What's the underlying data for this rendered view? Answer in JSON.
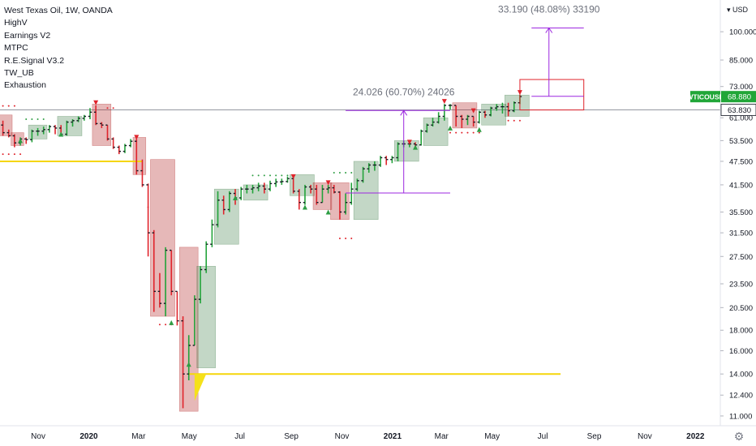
{
  "legend": {
    "title": "West Texas Oil, 1W, OANDA",
    "indicators": [
      "HighV",
      "Earnings V2",
      "MTPC",
      "R.E.Signal V3.2",
      "TW_UB",
      "Exhaustion"
    ]
  },
  "chart_data": {
    "type": "candlestick",
    "symbol": "WTICOUSD",
    "currency": "USD",
    "last_price": "68.880",
    "horizontal_line_value": "63.830",
    "y_axis": {
      "scale": "log",
      "ticks": [
        "100.000",
        "85.000",
        "73.000",
        "63.830",
        "61.000",
        "53.500",
        "47.500",
        "41.500",
        "35.500",
        "31.500",
        "27.500",
        "23.500",
        "20.500",
        "18.000",
        "16.000",
        "14.000",
        "12.400",
        "11.000"
      ],
      "tick_values": [
        100,
        85,
        73,
        63.83,
        61,
        53.5,
        47.5,
        41.5,
        35.5,
        31.5,
        27.5,
        23.5,
        20.5,
        18,
        16,
        14,
        12.4,
        11
      ],
      "ylim": [
        10.4,
        120
      ]
    },
    "x_axis": {
      "ticks": [
        "Nov",
        "2020",
        "Mar",
        "May",
        "Jul",
        "Sep",
        "Nov",
        "2021",
        "Mar",
        "May",
        "Jul",
        "Sep",
        "Nov",
        "2022"
      ],
      "bold": [
        "2020",
        "2021",
        "2022"
      ],
      "xlim": [
        "2019-09-16",
        "2022-01-31"
      ]
    },
    "candles": [
      {
        "date": "2019-09-16",
        "o": 58.5,
        "h": 60,
        "l": 55,
        "c": 56
      },
      {
        "date": "2019-09-23",
        "o": 56,
        "h": 57,
        "l": 54.5,
        "c": 55
      },
      {
        "date": "2019-09-30",
        "o": 55,
        "h": 55.5,
        "l": 51.5,
        "c": 52.8
      },
      {
        "date": "2019-10-07",
        "o": 52.8,
        "h": 54.5,
        "l": 52,
        "c": 54
      },
      {
        "date": "2019-10-14",
        "o": 54,
        "h": 54.5,
        "l": 52.5,
        "c": 53.8
      },
      {
        "date": "2019-10-21",
        "o": 53.8,
        "h": 57,
        "l": 53,
        "c": 56.5
      },
      {
        "date": "2019-10-28",
        "o": 56.5,
        "h": 57.5,
        "l": 55,
        "c": 56.5
      },
      {
        "date": "2019-11-04",
        "o": 56.5,
        "h": 58,
        "l": 55.5,
        "c": 57
      },
      {
        "date": "2019-11-11",
        "o": 57,
        "h": 58.5,
        "l": 56,
        "c": 58
      },
      {
        "date": "2019-11-18",
        "o": 58,
        "h": 58.5,
        "l": 55.5,
        "c": 57.5
      },
      {
        "date": "2019-11-25",
        "o": 57.5,
        "h": 58.5,
        "l": 55,
        "c": 55.5
      },
      {
        "date": "2019-12-02",
        "o": 55.5,
        "h": 60,
        "l": 55,
        "c": 59.5
      },
      {
        "date": "2019-12-09",
        "o": 59.5,
        "h": 60.5,
        "l": 58,
        "c": 60
      },
      {
        "date": "2019-12-16",
        "o": 60,
        "h": 61.5,
        "l": 59.5,
        "c": 60.8
      },
      {
        "date": "2019-12-23",
        "o": 60.8,
        "h": 62,
        "l": 60,
        "c": 61.5
      },
      {
        "date": "2019-12-30",
        "o": 61.5,
        "h": 64.5,
        "l": 60.5,
        "c": 63
      },
      {
        "date": "2020-01-06",
        "o": 63,
        "h": 65.5,
        "l": 58.5,
        "c": 59
      },
      {
        "date": "2020-01-13",
        "o": 59,
        "h": 59.5,
        "l": 57.5,
        "c": 58.5
      },
      {
        "date": "2020-01-20",
        "o": 58.5,
        "h": 58.5,
        "l": 53.5,
        "c": 54
      },
      {
        "date": "2020-01-27",
        "o": 54,
        "h": 54.5,
        "l": 51,
        "c": 51.5
      },
      {
        "date": "2020-02-03",
        "o": 51.5,
        "h": 52,
        "l": 49.5,
        "c": 50.3
      },
      {
        "date": "2020-02-10",
        "o": 50.3,
        "h": 52.5,
        "l": 49.8,
        "c": 52
      },
      {
        "date": "2020-02-17",
        "o": 52,
        "h": 54,
        "l": 51.5,
        "c": 53.3
      },
      {
        "date": "2020-02-24",
        "o": 53.3,
        "h": 54,
        "l": 44,
        "c": 45
      },
      {
        "date": "2020-03-02",
        "o": 45,
        "h": 48,
        "l": 41,
        "c": 41.5
      },
      {
        "date": "2020-03-09",
        "o": 41.5,
        "h": 41.8,
        "l": 27.5,
        "c": 31.5
      },
      {
        "date": "2020-03-16",
        "o": 31.5,
        "h": 32,
        "l": 20,
        "c": 22.5
      },
      {
        "date": "2020-03-23",
        "o": 22.5,
        "h": 25,
        "l": 20.5,
        "c": 21
      },
      {
        "date": "2020-03-30",
        "o": 21,
        "h": 29,
        "l": 19.5,
        "c": 28.5
      },
      {
        "date": "2020-04-06",
        "o": 28.5,
        "h": 28.5,
        "l": 22,
        "c": 22.5
      },
      {
        "date": "2020-04-13",
        "o": 22.5,
        "h": 22.5,
        "l": 18.5,
        "c": 19
      },
      {
        "date": "2020-04-20",
        "o": 19,
        "h": 19.5,
        "l": 11.5,
        "c": 14
      },
      {
        "date": "2020-04-27",
        "o": 14,
        "h": 17.5,
        "l": 13.5,
        "c": 16.5
      },
      {
        "date": "2020-05-04",
        "o": 16.5,
        "h": 22,
        "l": 16.5,
        "c": 21.5
      },
      {
        "date": "2020-05-11",
        "o": 21.5,
        "h": 26,
        "l": 21,
        "c": 25.5
      },
      {
        "date": "2020-05-18",
        "o": 25.5,
        "h": 30,
        "l": 25,
        "c": 29.5
      },
      {
        "date": "2020-05-25",
        "o": 29.5,
        "h": 34,
        "l": 29,
        "c": 33
      },
      {
        "date": "2020-06-01",
        "o": 33,
        "h": 40,
        "l": 32.5,
        "c": 38
      },
      {
        "date": "2020-06-08",
        "o": 38,
        "h": 39,
        "l": 35,
        "c": 36
      },
      {
        "date": "2020-06-15",
        "o": 36,
        "h": 40,
        "l": 35.5,
        "c": 39.5
      },
      {
        "date": "2020-06-22",
        "o": 39.5,
        "h": 40.5,
        "l": 37,
        "c": 38.5
      },
      {
        "date": "2020-06-29",
        "o": 38.5,
        "h": 41,
        "l": 38,
        "c": 40.5
      },
      {
        "date": "2020-07-06",
        "o": 40.5,
        "h": 41.5,
        "l": 39.5,
        "c": 40.5
      },
      {
        "date": "2020-07-13",
        "o": 40.5,
        "h": 41.5,
        "l": 39.5,
        "c": 40.8
      },
      {
        "date": "2020-07-20",
        "o": 40.8,
        "h": 42,
        "l": 40,
        "c": 41.2
      },
      {
        "date": "2020-07-27",
        "o": 41.2,
        "h": 42,
        "l": 39.5,
        "c": 40.5
      },
      {
        "date": "2020-08-03",
        "o": 40.5,
        "h": 42.5,
        "l": 40,
        "c": 41.8
      },
      {
        "date": "2020-08-10",
        "o": 41.8,
        "h": 43,
        "l": 41,
        "c": 42.2
      },
      {
        "date": "2020-08-17",
        "o": 42.2,
        "h": 43,
        "l": 41.5,
        "c": 42.3
      },
      {
        "date": "2020-08-24",
        "o": 42.3,
        "h": 43.5,
        "l": 42,
        "c": 43
      },
      {
        "date": "2020-08-31",
        "o": 43,
        "h": 43.5,
        "l": 39.5,
        "c": 40
      },
      {
        "date": "2020-09-07",
        "o": 40,
        "h": 40.5,
        "l": 36,
        "c": 37.5
      },
      {
        "date": "2020-09-14",
        "o": 37.5,
        "h": 41.5,
        "l": 37,
        "c": 41
      },
      {
        "date": "2020-09-21",
        "o": 41,
        "h": 41.5,
        "l": 39.5,
        "c": 40.5
      },
      {
        "date": "2020-09-28",
        "o": 40.5,
        "h": 41.5,
        "l": 37,
        "c": 37.5
      },
      {
        "date": "2020-10-05",
        "o": 37.5,
        "h": 41.5,
        "l": 37.5,
        "c": 40.5
      },
      {
        "date": "2020-10-12",
        "o": 40.5,
        "h": 41.5,
        "l": 39.5,
        "c": 40.8
      },
      {
        "date": "2020-10-19",
        "o": 40.8,
        "h": 41.5,
        "l": 39.5,
        "c": 39.8
      },
      {
        "date": "2020-10-26",
        "o": 39.8,
        "h": 40,
        "l": 34,
        "c": 35.5
      },
      {
        "date": "2020-11-02",
        "o": 35.5,
        "h": 39.5,
        "l": 35,
        "c": 37.5
      },
      {
        "date": "2020-11-09",
        "o": 37.5,
        "h": 42,
        "l": 37,
        "c": 40.5
      },
      {
        "date": "2020-11-16",
        "o": 40.5,
        "h": 43,
        "l": 40,
        "c": 42.5
      },
      {
        "date": "2020-11-23",
        "o": 42.5,
        "h": 46,
        "l": 42,
        "c": 45.5
      },
      {
        "date": "2020-11-30",
        "o": 45.5,
        "h": 47,
        "l": 44.5,
        "c": 46.5
      },
      {
        "date": "2020-12-07",
        "o": 46.5,
        "h": 47.5,
        "l": 45,
        "c": 46.5
      },
      {
        "date": "2020-12-14",
        "o": 46.5,
        "h": 49,
        "l": 46,
        "c": 48.5
      },
      {
        "date": "2020-12-21",
        "o": 48.5,
        "h": 49,
        "l": 46.5,
        "c": 48
      },
      {
        "date": "2020-12-28",
        "o": 48,
        "h": 49,
        "l": 47,
        "c": 48.5
      },
      {
        "date": "2021-01-04",
        "o": 48.5,
        "h": 53,
        "l": 47.5,
        "c": 52.5
      },
      {
        "date": "2021-01-11",
        "o": 52.5,
        "h": 53.5,
        "l": 51.5,
        "c": 52.5
      },
      {
        "date": "2021-01-18",
        "o": 52.5,
        "h": 53.5,
        "l": 51.5,
        "c": 52.5
      },
      {
        "date": "2021-01-25",
        "o": 52.5,
        "h": 53,
        "l": 51.5,
        "c": 52.2
      },
      {
        "date": "2021-02-01",
        "o": 52.2,
        "h": 57,
        "l": 52,
        "c": 56.5
      },
      {
        "date": "2021-02-08",
        "o": 56.5,
        "h": 59,
        "l": 56,
        "c": 58.5
      },
      {
        "date": "2021-02-15",
        "o": 58.5,
        "h": 61,
        "l": 58,
        "c": 59.5
      },
      {
        "date": "2021-02-22",
        "o": 59.5,
        "h": 63,
        "l": 59,
        "c": 61.5
      },
      {
        "date": "2021-03-01",
        "o": 61.5,
        "h": 66,
        "l": 60,
        "c": 65.5
      },
      {
        "date": "2021-03-08",
        "o": 65.5,
        "h": 66,
        "l": 64,
        "c": 65.5
      },
      {
        "date": "2021-03-15",
        "o": 65.5,
        "h": 65.5,
        "l": 58,
        "c": 61.5
      },
      {
        "date": "2021-03-22",
        "o": 61.5,
        "h": 62,
        "l": 57.5,
        "c": 60.5
      },
      {
        "date": "2021-03-29",
        "o": 60.5,
        "h": 62,
        "l": 58.5,
        "c": 61.5
      },
      {
        "date": "2021-04-05",
        "o": 61.5,
        "h": 61.5,
        "l": 58,
        "c": 59.5
      },
      {
        "date": "2021-04-12",
        "o": 59.5,
        "h": 63.5,
        "l": 59,
        "c": 63
      },
      {
        "date": "2021-04-19",
        "o": 63,
        "h": 63.5,
        "l": 61,
        "c": 62
      },
      {
        "date": "2021-04-26",
        "o": 62,
        "h": 65,
        "l": 61.5,
        "c": 64.5
      },
      {
        "date": "2021-05-03",
        "o": 64.5,
        "h": 66,
        "l": 63.5,
        "c": 65
      },
      {
        "date": "2021-05-10",
        "o": 65,
        "h": 66.5,
        "l": 62.5,
        "c": 65
      },
      {
        "date": "2021-05-17",
        "o": 65,
        "h": 66.5,
        "l": 61.5,
        "c": 63.5
      },
      {
        "date": "2021-05-24",
        "o": 63.5,
        "h": 67,
        "l": 63,
        "c": 66.5
      },
      {
        "date": "2021-05-31",
        "o": 66.5,
        "h": 69.5,
        "l": 66,
        "c": 68.9
      }
    ],
    "box_annotations": [
      {
        "color": "red",
        "from": "2019-09-16",
        "to": "2019-09-23",
        "top": 62,
        "bottom": 55
      },
      {
        "color": "red",
        "from": "2019-09-30",
        "to": "2019-10-07",
        "top": 56,
        "bottom": 52
      },
      {
        "color": "green",
        "from": "2019-10-21",
        "to": "2019-11-04",
        "top": 58.5,
        "bottom": 54
      },
      {
        "color": "green",
        "from": "2019-11-25",
        "to": "2019-12-16",
        "top": 61.5,
        "bottom": 55
      },
      {
        "color": "red",
        "from": "2020-01-06",
        "to": "2020-01-20",
        "top": 66,
        "bottom": 52
      },
      {
        "color": "red",
        "from": "2020-02-24",
        "to": "2020-03-02",
        "top": 54.5,
        "bottom": 44
      },
      {
        "color": "red",
        "from": "2020-03-16",
        "to": "2020-04-06",
        "top": 48,
        "bottom": 19.5
      },
      {
        "color": "red",
        "from": "2020-04-20",
        "to": "2020-05-04",
        "top": 29,
        "bottom": 11.3
      },
      {
        "color": "green",
        "from": "2020-05-11",
        "to": "2020-05-25",
        "top": 26,
        "bottom": 14.5
      },
      {
        "color": "green",
        "from": "2020-06-01",
        "to": "2020-06-22",
        "top": 40.5,
        "bottom": 29.5
      },
      {
        "color": "green",
        "from": "2020-07-06",
        "to": "2020-07-27",
        "top": 41.5,
        "bottom": 38
      },
      {
        "color": "green",
        "from": "2020-08-31",
        "to": "2020-09-21",
        "top": 44,
        "bottom": 39
      },
      {
        "color": "red",
        "from": "2020-09-28",
        "to": "2020-10-12",
        "top": 42,
        "bottom": 36
      },
      {
        "color": "red",
        "from": "2020-10-19",
        "to": "2020-11-02",
        "top": 42,
        "bottom": 34
      },
      {
        "color": "green",
        "from": "2020-11-16",
        "to": "2020-12-07",
        "top": 47.5,
        "bottom": 34
      },
      {
        "color": "green",
        "from": "2021-01-04",
        "to": "2021-01-25",
        "top": 53.5,
        "bottom": 47.5
      },
      {
        "color": "green",
        "from": "2021-02-08",
        "to": "2021-03-01",
        "top": 61,
        "bottom": 52
      },
      {
        "color": "red",
        "from": "2021-03-15",
        "to": "2021-04-05",
        "top": 66.5,
        "bottom": 57.5
      },
      {
        "color": "green",
        "from": "2021-04-19",
        "to": "2021-05-10",
        "top": 66,
        "bottom": 58.5
      },
      {
        "color": "green",
        "from": "2021-05-17",
        "to": "2021-06-07",
        "top": 69.5,
        "bottom": 61.5
      }
    ],
    "up_triangles": [
      {
        "date": "2019-10-07",
        "price": 53.5
      },
      {
        "date": "2019-11-25",
        "price": 55.5
      },
      {
        "date": "2020-04-06",
        "price": 18.8
      },
      {
        "date": "2020-04-27",
        "price": 14.8
      },
      {
        "date": "2020-06-22",
        "price": 38.5
      },
      {
        "date": "2020-09-14",
        "price": 36.5
      },
      {
        "date": "2020-10-12",
        "price": 35.5
      },
      {
        "date": "2021-01-25",
        "price": 51.5
      },
      {
        "date": "2021-03-08",
        "price": 57.5
      },
      {
        "date": "2021-04-12",
        "price": 57
      }
    ],
    "down_triangles": [
      {
        "date": "2020-01-06",
        "price": 66.5
      },
      {
        "date": "2020-02-24",
        "price": 54.5
      },
      {
        "date": "2020-08-31",
        "price": 43.5
      },
      {
        "date": "2020-10-12",
        "price": 42
      },
      {
        "date": "2021-01-18",
        "price": 53
      },
      {
        "date": "2021-03-01",
        "price": 67
      },
      {
        "date": "2021-04-05",
        "price": 63.5
      },
      {
        "date": "2021-05-31",
        "price": 70.5
      }
    ],
    "dot_rows": [
      {
        "color": "red",
        "price": 65.3,
        "from": "2019-09-16",
        "to": "2019-09-30"
      },
      {
        "color": "red",
        "price": 49.5,
        "from": "2019-09-16",
        "to": "2019-10-07"
      },
      {
        "color": "green",
        "price": 60.5,
        "from": "2019-10-14",
        "to": "2019-11-04"
      },
      {
        "color": "red",
        "price": 64.5,
        "from": "2020-01-20",
        "to": "2020-01-27"
      },
      {
        "color": "red",
        "price": 36.5,
        "from": "2020-03-09",
        "to": "2020-03-09"
      },
      {
        "color": "red",
        "price": 18.6,
        "from": "2020-03-23",
        "to": "2020-04-06"
      },
      {
        "color": "green",
        "price": 43.8,
        "from": "2020-07-13",
        "to": "2020-08-24"
      },
      {
        "color": "red",
        "price": 30.5,
        "from": "2020-10-26",
        "to": "2020-11-09"
      },
      {
        "color": "green",
        "price": 44.5,
        "from": "2020-10-19",
        "to": "2020-11-09"
      },
      {
        "color": "red",
        "price": 56,
        "from": "2021-03-08",
        "to": "2021-04-12"
      },
      {
        "color": "red",
        "price": 60,
        "from": "2021-05-17",
        "to": "2021-05-31"
      }
    ],
    "yellow_lines": [
      {
        "price": 47.5,
        "from": "2019-09-16",
        "to": "2020-03-02"
      },
      {
        "price": 14.0,
        "from": "2020-05-04",
        "to": "2021-07-19"
      }
    ],
    "yellow_triangle": [
      {
        "date": "2020-05-04",
        "price": 12.0
      },
      {
        "date": "2020-05-04",
        "price": 14.0
      },
      {
        "date": "2020-05-18",
        "price": 14.0
      }
    ],
    "projections": [
      {
        "label": "24.026 (60.70%) 24026",
        "date": "2021-01-11",
        "x_from": "2020-11-02",
        "x_to": "2021-03-08",
        "from": 39.6,
        "to": 63.6
      },
      {
        "label": "33.190 (48.08%) 33190",
        "date": "2021-07-05",
        "x_from": "2021-06-14",
        "x_to": "2021-08-16",
        "from": 69.0,
        "to": 102.2
      }
    ],
    "target_box": {
      "from": "2021-05-31",
      "to": "2021-08-16",
      "top": 76,
      "bottom": 63.8
    }
  }
}
